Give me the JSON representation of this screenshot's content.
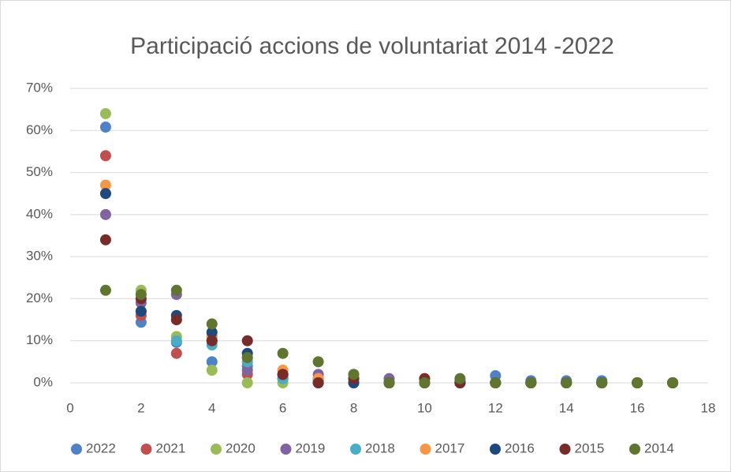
{
  "chart_data": {
    "type": "scatter",
    "title": "Participació accions de voluntariat 2014 -2022",
    "x": [
      1,
      2,
      3,
      4,
      5,
      6,
      7,
      8,
      9,
      10,
      11,
      12,
      13,
      14,
      15,
      16,
      17
    ],
    "series": [
      {
        "name": "2022",
        "color": "#4f81c7",
        "values": [
          60.8,
          14.4,
          9.6,
          5,
          4,
          1,
          0.5,
          0,
          0,
          0,
          0.5,
          1.7,
          0.5,
          0.5,
          0.5,
          0,
          0
        ]
      },
      {
        "name": "2021",
        "color": "#c0504d",
        "values": [
          54,
          16,
          7,
          10,
          2,
          2,
          1,
          1,
          0,
          0,
          0,
          0,
          0,
          0,
          0,
          0,
          0
        ]
      },
      {
        "name": "2020",
        "color": "#9bbb59",
        "values": [
          64,
          22,
          11,
          3,
          0,
          0,
          1,
          2,
          0,
          0,
          0,
          0,
          0,
          0,
          0,
          0,
          0
        ]
      },
      {
        "name": "2019",
        "color": "#8064a2",
        "values": [
          40,
          19,
          21,
          11,
          3,
          1,
          2,
          1,
          1,
          0,
          0,
          0,
          0,
          0,
          0,
          0,
          0
        ]
      },
      {
        "name": "2018",
        "color": "#4bacc6",
        "values": [
          45,
          17,
          10,
          9,
          5,
          1,
          1,
          1,
          0,
          0,
          0,
          0,
          0,
          0,
          0,
          0,
          0
        ]
      },
      {
        "name": "2017",
        "color": "#f79646",
        "values": [
          47,
          17,
          15,
          11,
          6,
          3,
          1,
          1,
          0,
          0,
          0,
          0,
          0,
          0,
          0,
          0,
          0
        ]
      },
      {
        "name": "2016",
        "color": "#1f497d",
        "values": [
          45,
          17,
          16,
          12,
          7,
          2,
          0,
          0,
          0,
          0,
          0,
          0,
          0,
          0,
          0,
          0,
          0
        ]
      },
      {
        "name": "2015",
        "color": "#772c2a",
        "values": [
          34,
          20,
          15,
          10,
          10,
          2,
          0,
          1,
          0,
          1,
          0,
          0,
          0,
          0,
          0,
          0,
          0
        ]
      },
      {
        "name": "2014",
        "color": "#5f7530",
        "values": [
          22,
          21,
          22,
          14,
          6,
          7,
          5,
          2,
          0,
          0,
          1,
          0,
          0,
          0,
          0,
          0,
          0
        ]
      }
    ],
    "xlim": [
      0,
      18
    ],
    "xticks": [
      0,
      2,
      4,
      6,
      8,
      10,
      12,
      14,
      16,
      18
    ],
    "ylim": [
      0,
      70
    ],
    "yticks": [
      {
        "value": 0,
        "label": "0%"
      },
      {
        "value": 10,
        "label": "10%"
      },
      {
        "value": 20,
        "label": "20%"
      },
      {
        "value": 30,
        "label": "30%"
      },
      {
        "value": 40,
        "label": "40%"
      },
      {
        "value": 50,
        "label": "50%"
      },
      {
        "value": 60,
        "label": "60%"
      },
      {
        "value": 70,
        "label": "70%"
      }
    ],
    "grid": true,
    "legend": "bottom"
  }
}
